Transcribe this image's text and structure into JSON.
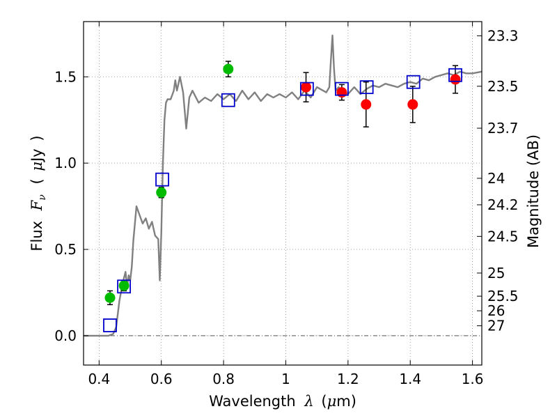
{
  "chart_data": {
    "type": "scatter",
    "title": "",
    "xlabel": {
      "prefix": "Wavelength",
      "symbol": "λ",
      "unit_open": "(",
      "unit_mu": "μ",
      "unit_rest": "m)"
    },
    "ylabel": {
      "prefix": "Flux",
      "symbol": "F",
      "sub": "ν",
      "unit_open": "(",
      "unit_mu": "μ",
      "unit_rest": "Jy",
      "unit_close": ")"
    },
    "y2label": "Magnitude (AB)",
    "xlim": [
      0.35,
      1.63
    ],
    "ylim": [
      -0.17,
      1.82
    ],
    "x_ticks": [
      {
        "value": 0.4,
        "label": "0.4"
      },
      {
        "value": 0.6,
        "label": "0.6"
      },
      {
        "value": 0.8,
        "label": "0.8"
      },
      {
        "value": 1.0,
        "label": "1"
      },
      {
        "value": 1.2,
        "label": "1.2"
      },
      {
        "value": 1.4,
        "label": "1.4"
      },
      {
        "value": 1.6,
        "label": "1.6"
      }
    ],
    "y_ticks": [
      {
        "value": 0.0,
        "label": "0.0"
      },
      {
        "value": 0.5,
        "label": "0.5"
      },
      {
        "value": 1.0,
        "label": "1.0"
      },
      {
        "value": 1.5,
        "label": "1.5"
      }
    ],
    "mag_ticks": [
      {
        "value": 23.3,
        "label": "23.3"
      },
      {
        "value": 23.5,
        "label": "23.5"
      },
      {
        "value": 23.7,
        "label": "23.7"
      },
      {
        "value": 24,
        "label": "24"
      },
      {
        "value": 24.2,
        "label": "24.2"
      },
      {
        "value": 24.5,
        "label": "24.5"
      },
      {
        "value": 25,
        "label": "25"
      },
      {
        "value": 25.5,
        "label": "25.5"
      },
      {
        "value": 26,
        "label": "26"
      },
      {
        "value": 27,
        "label": "27"
      }
    ],
    "grid": true,
    "zero_line": true,
    "colors": {
      "model": "#808080",
      "green": "#00bb00",
      "red": "#ff0000",
      "box": "#0000cc",
      "errbar": "#000000",
      "grid": "#888888"
    },
    "series": [
      {
        "name": "model-spectrum",
        "style": "line",
        "x": [
          0.35,
          0.4,
          0.43,
          0.445,
          0.455,
          0.465,
          0.475,
          0.485,
          0.49,
          0.495,
          0.5,
          0.505,
          0.51,
          0.52,
          0.53,
          0.54,
          0.55,
          0.56,
          0.57,
          0.58,
          0.59,
          0.595,
          0.6,
          0.605,
          0.61,
          0.615,
          0.62,
          0.63,
          0.64,
          0.645,
          0.65,
          0.66,
          0.67,
          0.68,
          0.69,
          0.7,
          0.72,
          0.74,
          0.76,
          0.78,
          0.8,
          0.82,
          0.84,
          0.86,
          0.88,
          0.9,
          0.92,
          0.94,
          0.96,
          0.98,
          1.0,
          1.02,
          1.04,
          1.06,
          1.08,
          1.1,
          1.12,
          1.13,
          1.14,
          1.145,
          1.15,
          1.155,
          1.16,
          1.17,
          1.18,
          1.2,
          1.22,
          1.24,
          1.26,
          1.28,
          1.3,
          1.32,
          1.34,
          1.36,
          1.38,
          1.4,
          1.42,
          1.44,
          1.46,
          1.48,
          1.5,
          1.52,
          1.54,
          1.56,
          1.58,
          1.6,
          1.63
        ],
        "y": [
          0.0,
          0.0,
          0.0,
          0.01,
          0.05,
          0.2,
          0.3,
          0.37,
          0.28,
          0.35,
          0.32,
          0.4,
          0.55,
          0.75,
          0.7,
          0.65,
          0.68,
          0.62,
          0.66,
          0.58,
          0.56,
          0.32,
          0.6,
          1.0,
          1.25,
          1.35,
          1.37,
          1.37,
          1.42,
          1.48,
          1.42,
          1.5,
          1.41,
          1.2,
          1.38,
          1.42,
          1.35,
          1.38,
          1.36,
          1.4,
          1.37,
          1.4,
          1.36,
          1.42,
          1.37,
          1.41,
          1.36,
          1.4,
          1.38,
          1.4,
          1.38,
          1.41,
          1.37,
          1.42,
          1.38,
          1.44,
          1.42,
          1.41,
          1.44,
          1.6,
          1.74,
          1.55,
          1.42,
          1.44,
          1.42,
          1.4,
          1.44,
          1.4,
          1.43,
          1.45,
          1.44,
          1.46,
          1.45,
          1.44,
          1.46,
          1.47,
          1.46,
          1.49,
          1.48,
          1.5,
          1.51,
          1.52,
          1.51,
          1.53,
          1.52,
          1.52,
          1.53
        ]
      },
      {
        "name": "green-photometry",
        "style": "circle",
        "points": [
          {
            "x": 0.435,
            "y": 0.22,
            "err": 0.04
          },
          {
            "x": 0.48,
            "y": 0.29,
            "err": 0.03
          },
          {
            "x": 0.6,
            "y": 0.83,
            "err": 0.03
          },
          {
            "x": 0.815,
            "y": 1.545,
            "err": 0.045
          }
        ]
      },
      {
        "name": "red-photometry",
        "style": "circle",
        "points": [
          {
            "x": 1.065,
            "y": 1.44,
            "err": 0.085
          },
          {
            "x": 1.18,
            "y": 1.41,
            "err": 0.045
          },
          {
            "x": 1.258,
            "y": 1.34,
            "err": 0.13
          },
          {
            "x": 1.408,
            "y": 1.34,
            "err": 0.105
          },
          {
            "x": 1.545,
            "y": 1.485,
            "err": 0.08
          }
        ]
      },
      {
        "name": "model-photometry",
        "style": "square",
        "points": [
          {
            "x": 0.435,
            "y": 0.06
          },
          {
            "x": 0.48,
            "y": 0.285
          },
          {
            "x": 0.603,
            "y": 0.905
          },
          {
            "x": 0.815,
            "y": 1.365
          },
          {
            "x": 1.068,
            "y": 1.43
          },
          {
            "x": 1.18,
            "y": 1.43
          },
          {
            "x": 1.26,
            "y": 1.44
          },
          {
            "x": 1.41,
            "y": 1.47
          },
          {
            "x": 1.545,
            "y": 1.51
          }
        ]
      }
    ]
  }
}
